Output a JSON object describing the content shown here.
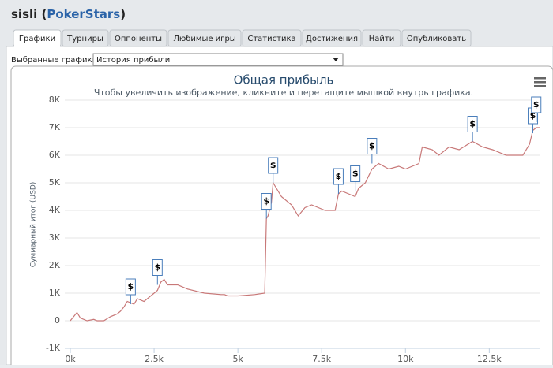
{
  "header": {
    "parts": [
      "sisli (",
      "PokerStars",
      ")"
    ]
  },
  "tabs": [
    "Графики",
    "Турниры",
    "Оппоненты",
    "Любимые игры",
    "Статистика",
    "Достижения",
    "Найти",
    "Опубликовать"
  ],
  "selector": {
    "label": "Выбранные графики:",
    "value": "История прибыли"
  },
  "chart_data": {
    "type": "line",
    "title": "Общая прибыль",
    "subtitle": "Чтобы увеличить изображение, кликните и перетащите мышкой внутрь графика.",
    "y_label": "Суммарный итог (USD)",
    "xlim": [
      0,
      14000
    ],
    "ylim": [
      -1000,
      8000
    ],
    "xticks": [
      {
        "value": 0,
        "label": "0k"
      },
      {
        "value": 2500,
        "label": "2.5k"
      },
      {
        "value": 5000,
        "label": "5k"
      },
      {
        "value": 7500,
        "label": "7.5k"
      },
      {
        "value": 10000,
        "label": "10k"
      },
      {
        "value": 12500,
        "label": "12.5k"
      }
    ],
    "yticks": [
      {
        "value": -1000,
        "label": "-1K"
      },
      0,
      {
        "value": 1000,
        "label": "1K"
      },
      {
        "value": 2000,
        "label": "2K"
      },
      {
        "value": 3000,
        "label": "3K"
      },
      {
        "value": 4000,
        "label": "4K"
      },
      {
        "value": 5000,
        "label": "5K"
      },
      {
        "value": 6000,
        "label": "6K"
      },
      {
        "value": 7000,
        "label": "7K"
      },
      {
        "value": 8000,
        "label": "8K"
      }
    ],
    "grid": true,
    "series": [
      {
        "color": "#c87878",
        "x": [
          0,
          200,
          300,
          500,
          700,
          800,
          1000,
          1200,
          1400,
          1500,
          1600,
          1700,
          1900,
          2000,
          2200,
          2400,
          2500,
          2600,
          2700,
          2800,
          2900,
          3200,
          3500,
          4000,
          4500,
          4600,
          4700,
          5000,
          5500,
          5800,
          5850,
          5900,
          6000,
          6050,
          6100,
          6300,
          6600,
          6800,
          7000,
          7200,
          7400,
          7600,
          7900,
          8000,
          8100,
          8300,
          8500,
          8600,
          8800,
          9000,
          9200,
          9500,
          9800,
          10000,
          10400,
          10500,
          10800,
          11000,
          11300,
          11600,
          12000,
          12300,
          12600,
          13000,
          13500,
          13700,
          13800,
          13900,
          14000
        ],
        "values": [
          0,
          300,
          100,
          0,
          50,
          0,
          0,
          150,
          250,
          350,
          500,
          700,
          600,
          800,
          700,
          900,
          1000,
          1100,
          1400,
          1500,
          1300,
          1300,
          1150,
          1000,
          950,
          950,
          900,
          900,
          950,
          1000,
          3700,
          3800,
          4300,
          5000,
          4900,
          4500,
          4200,
          3800,
          4100,
          4200,
          4100,
          4000,
          4000,
          4600,
          4700,
          4600,
          4500,
          4800,
          5000,
          5500,
          5700,
          5500,
          5600,
          5500,
          5700,
          6300,
          6200,
          6000,
          6300,
          6200,
          6500,
          6300,
          6200,
          6000,
          6000,
          6400,
          6900,
          7000,
          7000
        ]
      }
    ],
    "flags": [
      {
        "x": 1800,
        "y": 600,
        "label": "$"
      },
      {
        "x": 2600,
        "y": 1300,
        "label": "$"
      },
      {
        "x": 5850,
        "y": 3700,
        "label": "$"
      },
      {
        "x": 6050,
        "y": 5000,
        "label": "$"
      },
      {
        "x": 8000,
        "y": 4600,
        "label": "$"
      },
      {
        "x": 8500,
        "y": 4700,
        "label": "$"
      },
      {
        "x": 9000,
        "y": 5700,
        "label": "$"
      },
      {
        "x": 12000,
        "y": 6500,
        "label": "$"
      },
      {
        "x": 13800,
        "y": 6800,
        "label": "$"
      },
      {
        "x": 13900,
        "y": 7200,
        "label": "$"
      }
    ]
  }
}
